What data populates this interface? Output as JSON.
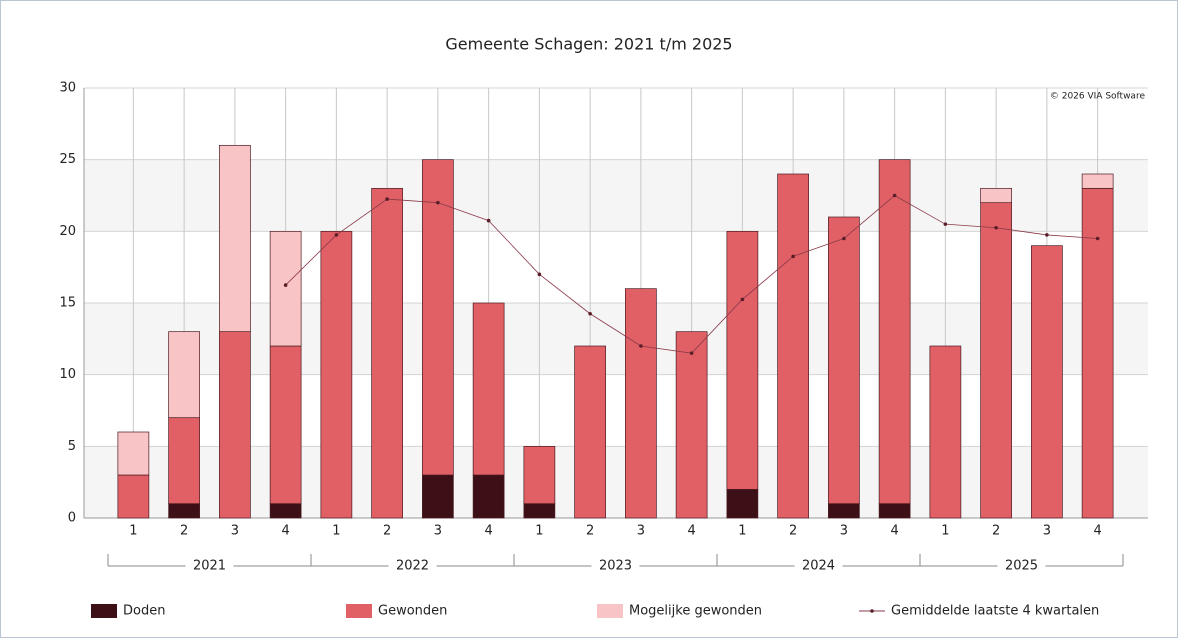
{
  "chart_data": {
    "type": "bar",
    "title": "Gemeente Schagen: 2021 t/m 2025",
    "annotation": "© 2026 VIA Software",
    "categories": [
      "1",
      "2",
      "3",
      "4",
      "1",
      "2",
      "3",
      "4",
      "1",
      "2",
      "3",
      "4",
      "1",
      "2",
      "3",
      "4",
      "1",
      "2",
      "3",
      "4"
    ],
    "groups": [
      "2021",
      "2022",
      "2023",
      "2024",
      "2025"
    ],
    "stacked": true,
    "grid": true,
    "legend": "bottom",
    "ylim": [
      0,
      30
    ],
    "yticks": [
      0,
      5,
      10,
      15,
      20,
      25,
      30
    ],
    "series": [
      {
        "name": "Doden",
        "color": "#3c1016",
        "values": [
          0,
          1,
          0,
          1,
          0,
          0,
          3,
          3,
          1,
          0,
          0,
          0,
          2,
          0,
          1,
          1,
          0,
          0,
          0,
          0
        ]
      },
      {
        "name": "Gewonden",
        "color": "#e06066",
        "values": [
          3,
          6,
          13,
          11,
          20,
          23,
          22,
          12,
          4,
          12,
          16,
          13,
          18,
          24,
          20,
          24,
          12,
          22,
          19,
          23
        ]
      },
      {
        "name": "Mogelijke gewonden",
        "color": "#f8c4c6",
        "values": [
          3,
          6,
          13,
          8,
          0,
          0,
          0,
          0,
          0,
          0,
          0,
          0,
          0,
          0,
          0,
          0,
          0,
          1,
          0,
          1
        ]
      },
      {
        "name": "Gemiddelde laatste 4 kwartalen",
        "type": "line",
        "color": "#8a3a48",
        "values": [
          null,
          null,
          null,
          16.25,
          19.75,
          22.25,
          22,
          20.75,
          17,
          14.25,
          12,
          11.5,
          15.25,
          18.25,
          19.5,
          22.5,
          20.5,
          20.25,
          19.75,
          19.5
        ]
      }
    ]
  }
}
